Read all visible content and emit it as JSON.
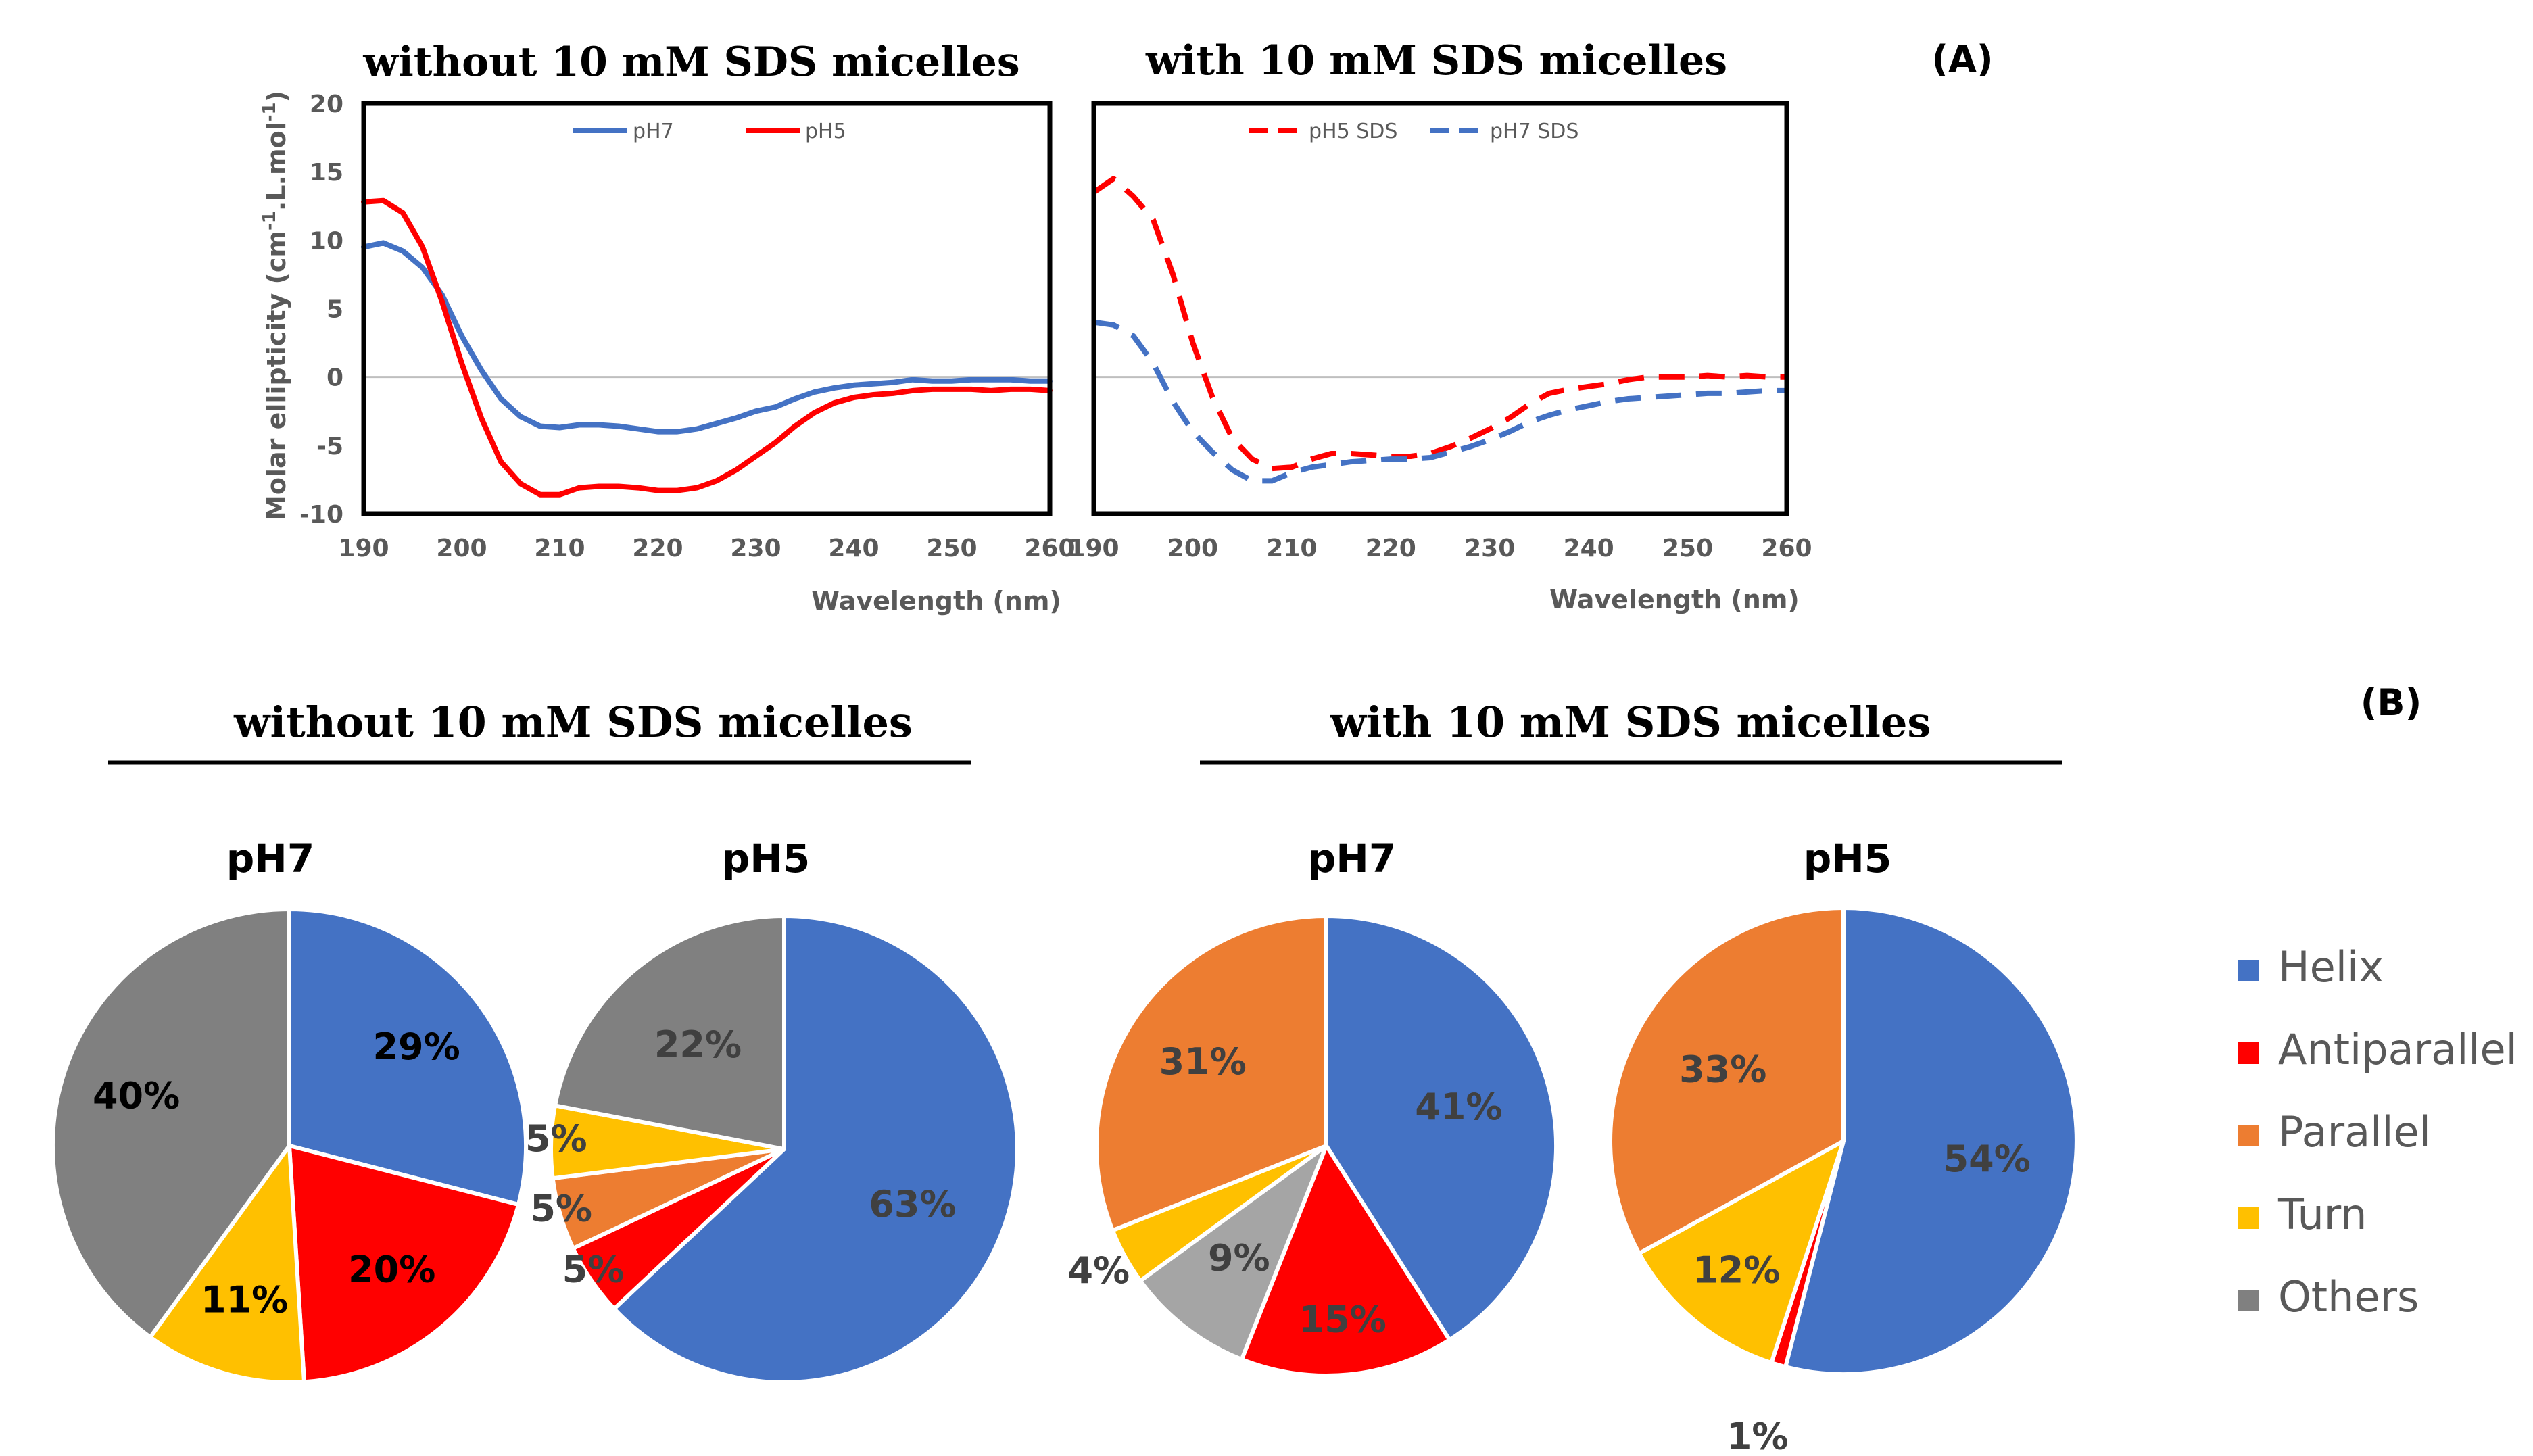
{
  "panel_labels": {
    "a": "(A)",
    "b": "(B)"
  },
  "colors": {
    "blue": "#4472C4",
    "red": "#FF0000",
    "orange": "#ED7D31",
    "yellow": "#FFC000",
    "gray": "#808080",
    "lightgray": "#A5A5A5",
    "axis_text": "#595959"
  },
  "section_b": {
    "left_title": "without 10 mM SDS micelles",
    "right_title": "with 10 mM SDS micelles"
  },
  "chart_data": [
    {
      "type": "line",
      "title": "without 10 mM SDS micelles",
      "xlabel": "Wavelength (nm)",
      "ylabel": "Molar ellipticity (cm-1.L.mol-1)",
      "ylabel_base": "Molar ellipticity (cm",
      "ylabel_sup1": "-1",
      "ylabel_mid": ".L.mol",
      "ylabel_sup2": "-1",
      "ylabel_end": ")",
      "xlim": [
        190,
        260
      ],
      "ylim": [
        -10,
        20
      ],
      "xticks": [
        190,
        200,
        210,
        220,
        230,
        240,
        250,
        260
      ],
      "xtick_labels": [
        "190",
        "200",
        "210",
        "220",
        "230",
        "240",
        "250",
        "260"
      ],
      "yticks": [
        -10,
        -5,
        0,
        5,
        10,
        15,
        20
      ],
      "ytick_labels": [
        "-10",
        "-5",
        "0",
        "5",
        "10",
        "15",
        "20"
      ],
      "legend": [
        "pH7",
        "pH5"
      ],
      "series": [
        {
          "name": "pH7",
          "color": "#4472C4",
          "dash": false,
          "x": [
            190,
            192,
            194,
            196,
            198,
            200,
            202,
            204,
            206,
            208,
            210,
            212,
            214,
            216,
            218,
            220,
            222,
            224,
            226,
            228,
            230,
            232,
            234,
            236,
            238,
            240,
            242,
            244,
            246,
            248,
            250,
            252,
            254,
            256,
            258,
            260
          ],
          "y": [
            9.5,
            9.8,
            9.2,
            8.0,
            6.0,
            3.0,
            0.5,
            -1.6,
            -2.9,
            -3.6,
            -3.7,
            -3.5,
            -3.5,
            -3.6,
            -3.8,
            -4.0,
            -4.0,
            -3.8,
            -3.4,
            -3.0,
            -2.5,
            -2.2,
            -1.6,
            -1.1,
            -0.8,
            -0.6,
            -0.5,
            -0.4,
            -0.2,
            -0.3,
            -0.3,
            -0.2,
            -0.2,
            -0.2,
            -0.3,
            -0.3
          ]
        },
        {
          "name": "pH5",
          "color": "#FF0000",
          "dash": false,
          "x": [
            190,
            192,
            194,
            196,
            198,
            200,
            202,
            204,
            206,
            208,
            210,
            212,
            214,
            216,
            218,
            220,
            222,
            224,
            226,
            228,
            230,
            232,
            234,
            236,
            238,
            240,
            242,
            244,
            246,
            248,
            250,
            252,
            254,
            256,
            258,
            260
          ],
          "y": [
            12.8,
            12.9,
            12.0,
            9.5,
            5.5,
            1.0,
            -3.0,
            -6.2,
            -7.8,
            -8.6,
            -8.6,
            -8.1,
            -8.0,
            -8.0,
            -8.1,
            -8.3,
            -8.3,
            -8.1,
            -7.6,
            -6.8,
            -5.8,
            -4.8,
            -3.6,
            -2.6,
            -1.9,
            -1.5,
            -1.3,
            -1.2,
            -1.0,
            -0.9,
            -0.9,
            -0.9,
            -1.0,
            -0.9,
            -0.9,
            -1.0
          ]
        }
      ]
    },
    {
      "type": "line",
      "title": "with 10 mM SDS micelles",
      "xlabel": "Wavelength (nm)",
      "xlim": [
        190,
        260
      ],
      "ylim": [
        -10,
        20
      ],
      "xticks": [
        190,
        200,
        210,
        220,
        230,
        240,
        250,
        260
      ],
      "xtick_labels": [
        "190",
        "200",
        "210",
        "220",
        "230",
        "240",
        "250",
        "260"
      ],
      "legend": [
        "pH5 SDS",
        "pH7 SDS"
      ],
      "series": [
        {
          "name": "pH5 SDS",
          "color": "#FF0000",
          "dash": true,
          "x": [
            190,
            192,
            194,
            196,
            198,
            200,
            202,
            204,
            206,
            208,
            210,
            212,
            214,
            216,
            218,
            220,
            222,
            224,
            226,
            228,
            230,
            232,
            234,
            236,
            238,
            240,
            242,
            244,
            246,
            248,
            250,
            252,
            254,
            256,
            258,
            260
          ],
          "y": [
            13.5,
            14.5,
            13.2,
            11.5,
            7.5,
            2.5,
            -1.5,
            -4.5,
            -6.0,
            -6.7,
            -6.6,
            -6.0,
            -5.6,
            -5.6,
            -5.7,
            -5.8,
            -5.8,
            -5.6,
            -5.1,
            -4.5,
            -3.8,
            -3.0,
            -2.0,
            -1.2,
            -0.9,
            -0.7,
            -0.5,
            -0.2,
            0.0,
            0.0,
            0.0,
            0.1,
            0.0,
            0.1,
            0.0,
            0.0
          ]
        },
        {
          "name": "pH7 SDS",
          "color": "#4472C4",
          "dash": true,
          "x": [
            190,
            192,
            194,
            196,
            198,
            200,
            202,
            204,
            206,
            208,
            210,
            212,
            214,
            216,
            218,
            220,
            222,
            224,
            226,
            228,
            230,
            232,
            234,
            236,
            238,
            240,
            242,
            244,
            246,
            248,
            250,
            252,
            254,
            256,
            258,
            260
          ],
          "y": [
            4.0,
            3.8,
            3.0,
            1.0,
            -1.8,
            -4.0,
            -5.5,
            -6.8,
            -7.6,
            -7.6,
            -7.0,
            -6.6,
            -6.4,
            -6.2,
            -6.1,
            -6.0,
            -6.0,
            -5.9,
            -5.5,
            -5.1,
            -4.6,
            -4.0,
            -3.3,
            -2.8,
            -2.4,
            -2.1,
            -1.8,
            -1.6,
            -1.5,
            -1.4,
            -1.3,
            -1.2,
            -1.2,
            -1.1,
            -1.0,
            -1.0
          ]
        }
      ]
    },
    {
      "type": "pie",
      "title": "pH7",
      "group": "without 10 mM SDS micelles",
      "slices": [
        {
          "name": "Helix",
          "value": 29,
          "label": "29%",
          "color": "#4472C4",
          "text_color": "#000000",
          "bold": true
        },
        {
          "name": "Antiparallel",
          "value": 20,
          "label": "20%",
          "color": "#FF0000",
          "text_color": "#000000",
          "bold": true
        },
        {
          "name": "Turn",
          "value": 11,
          "label": "11%",
          "color": "#FFC000",
          "text_color": "#000000",
          "bold": true
        },
        {
          "name": "Others",
          "value": 40,
          "label": "40%",
          "color": "#808080",
          "text_color": "#000000",
          "bold": true
        }
      ]
    },
    {
      "type": "pie",
      "title": "pH5",
      "group": "without 10 mM SDS micelles",
      "slices": [
        {
          "name": "Helix",
          "value": 63,
          "label": "63%",
          "color": "#4472C4",
          "text_color": "#404040",
          "bold": true
        },
        {
          "name": "Antiparallel",
          "value": 5,
          "label": "5%",
          "color": "#FF0000",
          "text_color": "#404040",
          "bold": true
        },
        {
          "name": "Parallel",
          "value": 5,
          "label": "5%",
          "color": "#ED7D31",
          "text_color": "#404040",
          "bold": true
        },
        {
          "name": "Turn",
          "value": 5,
          "label": "5%",
          "color": "#FFC000",
          "text_color": "#404040",
          "bold": true
        },
        {
          "name": "Others",
          "value": 22,
          "label": "22%",
          "color": "#808080",
          "text_color": "#404040",
          "bold": true
        }
      ]
    },
    {
      "type": "pie",
      "title": "pH7",
      "group": "with 10 mM SDS micelles",
      "slices": [
        {
          "name": "Helix",
          "value": 41,
          "label": "41%",
          "color": "#4472C4",
          "text_color": "#404040",
          "bold": true
        },
        {
          "name": "Antiparallel",
          "value": 15,
          "label": "15%",
          "color": "#FF0000",
          "text_color": "#404040",
          "bold": true
        },
        {
          "name": "Others",
          "value": 9,
          "label": "9%",
          "color": "#A5A5A5",
          "text_color": "#404040",
          "bold": true
        },
        {
          "name": "Turn",
          "value": 4,
          "label": "4%",
          "color": "#FFC000",
          "text_color": "#404040",
          "bold": true
        },
        {
          "name": "Parallel",
          "value": 31,
          "label": "31%",
          "color": "#ED7D31",
          "text_color": "#404040",
          "bold": true
        }
      ]
    },
    {
      "type": "pie",
      "title": "pH5",
      "group": "with 10 mM SDS micelles",
      "slices": [
        {
          "name": "Helix",
          "value": 54,
          "label": "54%",
          "color": "#4472C4",
          "text_color": "#404040",
          "bold": true
        },
        {
          "name": "Antiparallel",
          "value": 1,
          "label": "1%",
          "color": "#FF0000",
          "text_color": "#404040",
          "bold": true
        },
        {
          "name": "Turn",
          "value": 12,
          "label": "12%",
          "color": "#FFC000",
          "text_color": "#404040",
          "bold": true
        },
        {
          "name": "Parallel",
          "value": 33,
          "label": "33%",
          "color": "#ED7D31",
          "text_color": "#404040",
          "bold": true
        }
      ]
    }
  ],
  "pie_legend": [
    {
      "name": "Helix",
      "color": "#4472C4"
    },
    {
      "name": "Antiparallel",
      "color": "#FF0000"
    },
    {
      "name": "Parallel",
      "color": "#ED7D31"
    },
    {
      "name": "Turn",
      "color": "#FFC000"
    },
    {
      "name": "Others",
      "color": "#808080"
    }
  ]
}
